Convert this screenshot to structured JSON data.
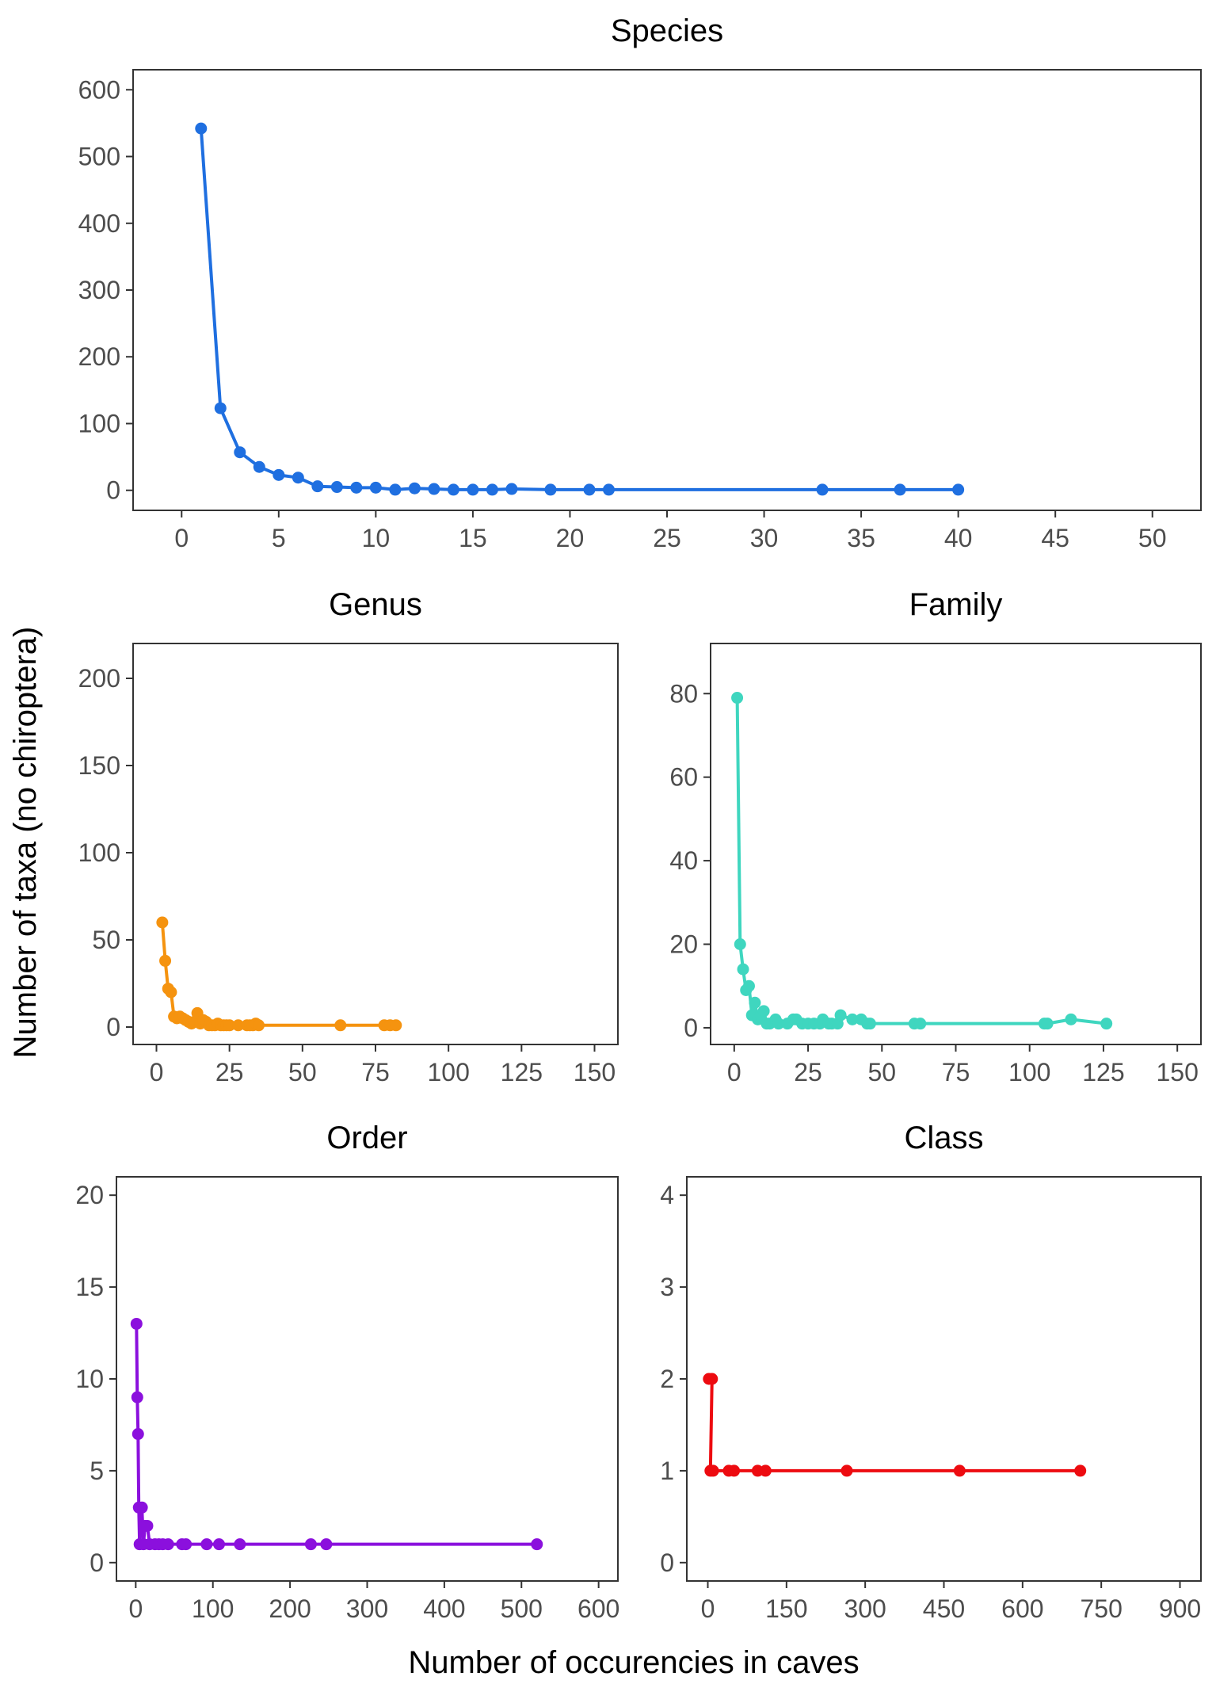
{
  "figure": {
    "ylabel": "Number of taxa (no chiroptera)",
    "xlabel": "Number of occurencies in caves"
  },
  "chart_data": [
    {
      "type": "line",
      "title": "Species",
      "color": "#1f6fe0",
      "xlim": [
        -2.5,
        52.5
      ],
      "ylim": [
        -30,
        630
      ],
      "xticks": [
        0,
        5,
        10,
        15,
        20,
        25,
        30,
        35,
        40,
        45,
        50
      ],
      "yticks": [
        0,
        100,
        200,
        300,
        400,
        500,
        600
      ],
      "x": [
        1,
        2,
        3,
        4,
        5,
        6,
        7,
        8,
        9,
        10,
        11,
        12,
        13,
        14,
        15,
        16,
        17,
        19,
        21,
        22,
        33,
        37,
        40
      ],
      "y": [
        542,
        123,
        57,
        35,
        23,
        19,
        6,
        5,
        4,
        4,
        1,
        3,
        2,
        1,
        1,
        1,
        2,
        1,
        1,
        1,
        1,
        1,
        1
      ]
    },
    {
      "type": "line",
      "title": "Genus",
      "color": "#f5930f",
      "xlim": [
        -8,
        158
      ],
      "ylim": [
        -10,
        220
      ],
      "xticks": [
        0,
        25,
        50,
        75,
        100,
        125,
        150
      ],
      "yticks": [
        0,
        50,
        100,
        150,
        200
      ],
      "x": [
        2,
        3,
        4,
        5,
        6,
        7,
        8,
        9,
        10,
        11,
        12,
        13,
        14,
        15,
        16,
        17,
        18,
        19,
        20,
        21,
        22,
        23,
        24,
        25,
        28,
        31,
        32,
        33,
        34,
        35,
        63,
        78,
        80,
        82
      ],
      "y": [
        60,
        38,
        22,
        20,
        6,
        5,
        6,
        5,
        4,
        3,
        2,
        3,
        8,
        2,
        4,
        3,
        1,
        1,
        1,
        2,
        1,
        1,
        1,
        1,
        1,
        1,
        1,
        1,
        2,
        1,
        1,
        1,
        1,
        1
      ]
    },
    {
      "type": "line",
      "title": "Family",
      "color": "#3fd6bf",
      "xlim": [
        -8,
        158
      ],
      "ylim": [
        -4,
        92
      ],
      "xticks": [
        0,
        25,
        50,
        75,
        100,
        125,
        150
      ],
      "yticks": [
        0,
        20,
        40,
        60,
        80
      ],
      "x": [
        1,
        2,
        3,
        4,
        5,
        6,
        7,
        8,
        9,
        10,
        11,
        12,
        14,
        15,
        18,
        20,
        21,
        23,
        25,
        27,
        29,
        30,
        32,
        33,
        35,
        36,
        40,
        43,
        45,
        46,
        61,
        63,
        105,
        106,
        114,
        126
      ],
      "y": [
        79,
        20,
        14,
        9,
        10,
        3,
        6,
        2,
        3,
        4,
        1,
        1,
        2,
        1,
        1,
        2,
        2,
        1,
        1,
        1,
        1,
        2,
        1,
        1,
        1,
        3,
        2,
        2,
        1,
        1,
        1,
        1,
        1,
        1,
        2,
        1
      ]
    },
    {
      "type": "line",
      "title": "Order",
      "color": "#8b10dd",
      "xlim": [
        -25,
        625
      ],
      "ylim": [
        -1,
        21
      ],
      "xticks": [
        0,
        100,
        200,
        300,
        400,
        500,
        600
      ],
      "yticks": [
        0,
        5,
        10,
        15,
        20
      ],
      "x": [
        1,
        2,
        3,
        4,
        5,
        8,
        10,
        12,
        15,
        18,
        25,
        30,
        35,
        42,
        60,
        65,
        92,
        108,
        135,
        227,
        247,
        520
      ],
      "y": [
        13,
        9,
        7,
        3,
        1,
        3,
        1,
        2,
        2,
        1,
        1,
        1,
        1,
        1,
        1,
        1,
        1,
        1,
        1,
        1,
        1,
        1
      ]
    },
    {
      "type": "line",
      "title": "Class",
      "color": "#ed0b10",
      "xlim": [
        -40,
        940
      ],
      "ylim": [
        -0.2,
        4.2
      ],
      "xticks": [
        0,
        150,
        300,
        450,
        600,
        750,
        900
      ],
      "yticks": [
        0,
        1,
        2,
        3,
        4
      ],
      "x": [
        2,
        8,
        5,
        10,
        40,
        50,
        95,
        110,
        265,
        480,
        710
      ],
      "y": [
        2,
        2,
        1,
        1,
        1,
        1,
        1,
        1,
        1,
        1,
        1
      ]
    }
  ]
}
